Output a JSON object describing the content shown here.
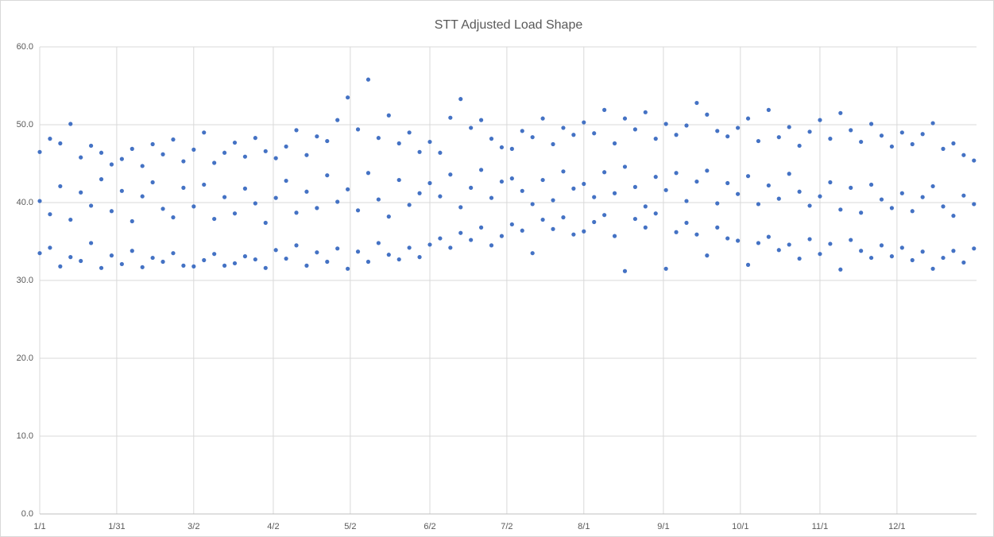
{
  "chart_data": {
    "type": "scatter",
    "title": "STT Adjusted Load Shape",
    "color": "#4472c4",
    "grid": true,
    "xlim": [
      0,
      365
    ],
    "xticks": [
      {
        "value": 0,
        "label": "1/1"
      },
      {
        "value": 30,
        "label": "1/31"
      },
      {
        "value": 60,
        "label": "3/2"
      },
      {
        "value": 91,
        "label": "4/2"
      },
      {
        "value": 121,
        "label": "5/2"
      },
      {
        "value": 152,
        "label": "6/2"
      },
      {
        "value": 182,
        "label": "7/2"
      },
      {
        "value": 212,
        "label": "8/1"
      },
      {
        "value": 243,
        "label": "9/1"
      },
      {
        "value": 273,
        "label": "10/1"
      },
      {
        "value": 304,
        "label": "11/1"
      },
      {
        "value": 334,
        "label": "12/1"
      }
    ],
    "ylim": [
      0,
      60
    ],
    "yticks": [
      {
        "value": 0,
        "label": "0.0"
      },
      {
        "value": 10,
        "label": "10.0"
      },
      {
        "value": 20,
        "label": "20.0"
      },
      {
        "value": 30,
        "label": "30.0"
      },
      {
        "value": 40,
        "label": "40.0"
      },
      {
        "value": 50,
        "label": "50.0"
      },
      {
        "value": 60,
        "label": "60.0"
      }
    ],
    "x": [
      0,
      4,
      8,
      12,
      16,
      20,
      24,
      28,
      32,
      36,
      40,
      44,
      48,
      52,
      56,
      60,
      64,
      68,
      72,
      76,
      80,
      84,
      88,
      92,
      96,
      100,
      104,
      108,
      112,
      116,
      120,
      124,
      128,
      132,
      136,
      140,
      144,
      148,
      152,
      156,
      160,
      164,
      168,
      172,
      176,
      180,
      184,
      188,
      192,
      196,
      200,
      204,
      208,
      212,
      216,
      220,
      224,
      228,
      232,
      236,
      240,
      244,
      248,
      252,
      256,
      260,
      264,
      268,
      272,
      276,
      280,
      284,
      288,
      292,
      296,
      300,
      304,
      308,
      312,
      316,
      320,
      324,
      328,
      332,
      336,
      340,
      344,
      348,
      352,
      356,
      360,
      364,
      0,
      4,
      8,
      12,
      16,
      20,
      24,
      28,
      32,
      36,
      40,
      44,
      48,
      52,
      56,
      60,
      64,
      68,
      72,
      76,
      80,
      84,
      88,
      92,
      96,
      100,
      104,
      108,
      112,
      116,
      120,
      124,
      128,
      132,
      136,
      140,
      144,
      148,
      152,
      156,
      160,
      164,
      168,
      172,
      176,
      180,
      184,
      188,
      192,
      196,
      200,
      204,
      208,
      212,
      216,
      220,
      224,
      228,
      232,
      236,
      240,
      244,
      248,
      252,
      256,
      260,
      264,
      268,
      272,
      276,
      280,
      284,
      288,
      292,
      296,
      300,
      304,
      308,
      312,
      316,
      320,
      324,
      328,
      332,
      336,
      340,
      344,
      348,
      352,
      356,
      360,
      364,
      0,
      4,
      8,
      12,
      16,
      20,
      24,
      28,
      32,
      36,
      40,
      44,
      48,
      52,
      56,
      60,
      64,
      68,
      72,
      76,
      80,
      84,
      88,
      92,
      96,
      100,
      104,
      108,
      112,
      116,
      120,
      124,
      128,
      132,
      136,
      140,
      144,
      148,
      152,
      156,
      160,
      164,
      168,
      172,
      176,
      180,
      184,
      188,
      192,
      196,
      200,
      204,
      208,
      212,
      216,
      220,
      224,
      228,
      232,
      236,
      240,
      244,
      248,
      252,
      256,
      260,
      264,
      268,
      272,
      276,
      280,
      284,
      288,
      292,
      296,
      300,
      304,
      308,
      312,
      316,
      320,
      324,
      328,
      332,
      336,
      340,
      344,
      348,
      352,
      356,
      360,
      364
    ],
    "values": [
      33.5,
      34.2,
      31.8,
      33.0,
      32.5,
      34.8,
      31.6,
      33.2,
      32.1,
      33.8,
      31.7,
      32.9,
      32.4,
      33.5,
      31.9,
      31.8,
      32.6,
      33.4,
      31.9,
      32.2,
      33.1,
      32.7,
      31.6,
      33.9,
      32.8,
      34.5,
      31.9,
      33.6,
      32.4,
      34.1,
      31.5,
      33.7,
      32.4,
      34.8,
      33.3,
      32.7,
      34.2,
      33.0,
      34.6,
      35.4,
      34.2,
      36.1,
      35.2,
      36.8,
      34.5,
      35.7,
      37.2,
      36.4,
      33.5,
      37.8,
      36.6,
      38.1,
      35.9,
      36.3,
      37.5,
      38.4,
      35.7,
      31.2,
      37.9,
      36.8,
      38.6,
      31.5,
      36.2,
      37.4,
      35.9,
      33.2,
      36.8,
      35.4,
      35.1,
      32.0,
      34.8,
      35.6,
      33.9,
      34.6,
      32.8,
      35.3,
      33.4,
      34.7,
      31.4,
      35.2,
      33.8,
      32.9,
      34.5,
      33.1,
      34.2,
      32.6,
      33.7,
      31.5,
      32.9,
      33.8,
      32.3,
      34.1,
      40.2,
      38.5,
      42.1,
      37.8,
      41.3,
      39.6,
      43.0,
      38.9,
      41.5,
      37.6,
      40.8,
      42.6,
      39.2,
      38.1,
      41.9,
      39.5,
      42.3,
      37.9,
      40.7,
      38.6,
      41.8,
      39.9,
      37.4,
      40.6,
      42.8,
      38.7,
      41.4,
      39.3,
      43.5,
      40.1,
      41.7,
      39.0,
      43.8,
      40.4,
      38.2,
      42.9,
      39.7,
      41.2,
      42.5,
      40.8,
      43.6,
      39.4,
      41.9,
      44.2,
      40.6,
      42.7,
      43.1,
      41.5,
      39.8,
      42.9,
      40.3,
      44.0,
      41.8,
      42.4,
      40.7,
      43.9,
      41.2,
      44.6,
      42.0,
      39.5,
      43.3,
      41.6,
      43.8,
      40.2,
      42.7,
      44.1,
      39.9,
      42.5,
      41.1,
      43.4,
      39.8,
      42.2,
      40.5,
      43.7,
      41.4,
      39.6,
      40.8,
      42.6,
      39.1,
      41.9,
      38.7,
      42.3,
      40.4,
      39.3,
      41.2,
      38.9,
      40.7,
      42.1,
      39.5,
      38.3,
      40.9,
      39.8,
      46.5,
      48.2,
      47.6,
      50.1,
      45.8,
      47.3,
      46.4,
      44.9,
      45.6,
      46.9,
      44.7,
      47.5,
      46.2,
      48.1,
      45.3,
      46.8,
      49.0,
      45.1,
      46.4,
      47.7,
      45.9,
      48.3,
      46.6,
      45.7,
      47.2,
      49.3,
      46.1,
      48.5,
      47.9,
      50.6,
      53.5,
      49.4,
      55.8,
      48.3,
      51.2,
      47.6,
      49.0,
      46.5,
      47.8,
      46.4,
      50.9,
      53.3,
      49.6,
      50.6,
      48.2,
      47.1,
      46.9,
      49.2,
      48.4,
      50.8,
      47.5,
      49.6,
      48.7,
      50.3,
      48.9,
      51.9,
      47.6,
      50.8,
      49.4,
      51.6,
      48.2,
      50.1,
      48.7,
      49.9,
      52.8,
      51.3,
      49.2,
      48.5,
      49.6,
      50.8,
      47.9,
      51.9,
      48.4,
      49.7,
      47.3,
      49.1,
      50.6,
      48.2,
      51.5,
      49.3,
      47.8,
      50.1,
      48.6,
      47.2,
      49.0,
      47.5,
      48.8,
      50.2,
      46.9,
      47.6,
      46.1,
      45.4
    ]
  }
}
